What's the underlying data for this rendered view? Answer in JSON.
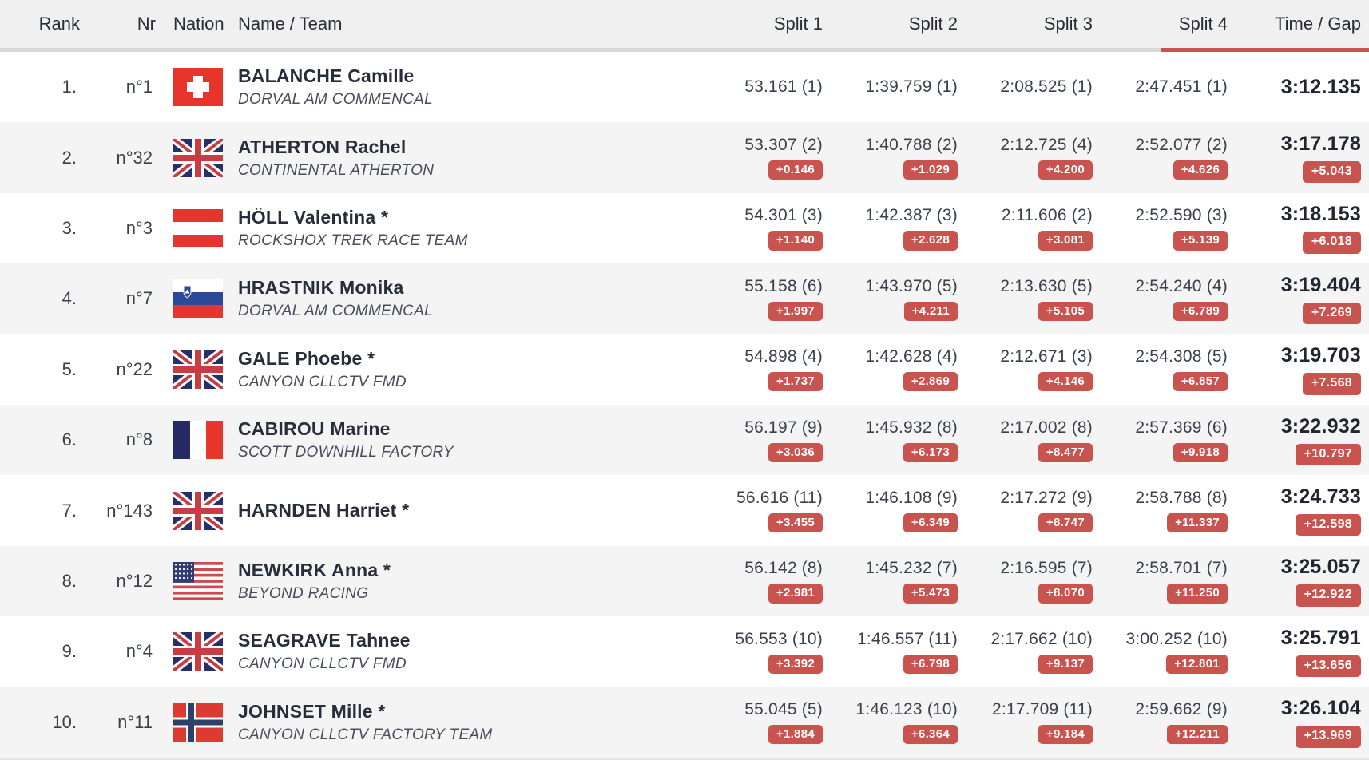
{
  "table": {
    "header": {
      "rank": "Rank",
      "nr": "Nr",
      "nation": "Nation",
      "name_team": "Name / Team",
      "split1": "Split 1",
      "split2": "Split 2",
      "split3": "Split 3",
      "split4": "Split 4",
      "time_gap": "Time / Gap"
    },
    "sorted_column": "time_gap"
  },
  "colors": {
    "accent_red": "#c9544f",
    "header_bg": "#f0f0f1",
    "alt_row_bg": "#f4f4f5",
    "separator_gray": "#d7d7d9"
  },
  "rows": [
    {
      "rank": "1.",
      "nr": "n°1",
      "nation": "SUI",
      "flag_icon": "flag-sui-icon",
      "name": "BALANCHE Camille",
      "team": "DORVAL AM COMMENCAL",
      "splits": [
        {
          "time": "53.161 (1)",
          "gap": null
        },
        {
          "time": "1:39.759 (1)",
          "gap": null
        },
        {
          "time": "2:08.525 (1)",
          "gap": null
        },
        {
          "time": "2:47.451 (1)",
          "gap": null
        }
      ],
      "total": {
        "time": "3:12.135",
        "gap": null
      }
    },
    {
      "rank": "2.",
      "nr": "n°32",
      "nation": "GBR",
      "flag_icon": "flag-gbr-icon",
      "name": "ATHERTON Rachel",
      "team": "CONTINENTAL ATHERTON",
      "splits": [
        {
          "time": "53.307 (2)",
          "gap": "+0.146"
        },
        {
          "time": "1:40.788 (2)",
          "gap": "+1.029"
        },
        {
          "time": "2:12.725 (4)",
          "gap": "+4.200"
        },
        {
          "time": "2:52.077 (2)",
          "gap": "+4.626"
        }
      ],
      "total": {
        "time": "3:17.178",
        "gap": "+5.043"
      }
    },
    {
      "rank": "3.",
      "nr": "n°3",
      "nation": "AUT",
      "flag_icon": "flag-aut-icon",
      "name": "HÖLL Valentina *",
      "team": "ROCKSHOX TREK RACE TEAM",
      "splits": [
        {
          "time": "54.301 (3)",
          "gap": "+1.140"
        },
        {
          "time": "1:42.387 (3)",
          "gap": "+2.628"
        },
        {
          "time": "2:11.606 (2)",
          "gap": "+3.081"
        },
        {
          "time": "2:52.590 (3)",
          "gap": "+5.139"
        }
      ],
      "total": {
        "time": "3:18.153",
        "gap": "+6.018"
      }
    },
    {
      "rank": "4.",
      "nr": "n°7",
      "nation": "SLO",
      "flag_icon": "flag-slo-icon",
      "name": "HRASTNIK Monika",
      "team": "DORVAL AM COMMENCAL",
      "splits": [
        {
          "time": "55.158 (6)",
          "gap": "+1.997"
        },
        {
          "time": "1:43.970 (5)",
          "gap": "+4.211"
        },
        {
          "time": "2:13.630 (5)",
          "gap": "+5.105"
        },
        {
          "time": "2:54.240 (4)",
          "gap": "+6.789"
        }
      ],
      "total": {
        "time": "3:19.404",
        "gap": "+7.269"
      }
    },
    {
      "rank": "5.",
      "nr": "n°22",
      "nation": "GBR",
      "flag_icon": "flag-gbr-icon",
      "name": "GALE Phoebe *",
      "team": "CANYON CLLCTV FMD",
      "splits": [
        {
          "time": "54.898 (4)",
          "gap": "+1.737"
        },
        {
          "time": "1:42.628 (4)",
          "gap": "+2.869"
        },
        {
          "time": "2:12.671 (3)",
          "gap": "+4.146"
        },
        {
          "time": "2:54.308 (5)",
          "gap": "+6.857"
        }
      ],
      "total": {
        "time": "3:19.703",
        "gap": "+7.568"
      }
    },
    {
      "rank": "6.",
      "nr": "n°8",
      "nation": "FRA",
      "flag_icon": "flag-fra-icon",
      "name": "CABIROU Marine",
      "team": "SCOTT DOWNHILL FACTORY",
      "splits": [
        {
          "time": "56.197 (9)",
          "gap": "+3.036"
        },
        {
          "time": "1:45.932 (8)",
          "gap": "+6.173"
        },
        {
          "time": "2:17.002 (8)",
          "gap": "+8.477"
        },
        {
          "time": "2:57.369 (6)",
          "gap": "+9.918"
        }
      ],
      "total": {
        "time": "3:22.932",
        "gap": "+10.797"
      }
    },
    {
      "rank": "7.",
      "nr": "n°143",
      "nation": "GBR",
      "flag_icon": "flag-gbr-icon",
      "name": "HARNDEN Harriet *",
      "team": null,
      "splits": [
        {
          "time": "56.616 (11)",
          "gap": "+3.455"
        },
        {
          "time": "1:46.108 (9)",
          "gap": "+6.349"
        },
        {
          "time": "2:17.272 (9)",
          "gap": "+8.747"
        },
        {
          "time": "2:58.788 (8)",
          "gap": "+11.337"
        }
      ],
      "total": {
        "time": "3:24.733",
        "gap": "+12.598"
      }
    },
    {
      "rank": "8.",
      "nr": "n°12",
      "nation": "USA",
      "flag_icon": "flag-usa-icon",
      "name": "NEWKIRK Anna *",
      "team": "BEYOND RACING",
      "splits": [
        {
          "time": "56.142 (8)",
          "gap": "+2.981"
        },
        {
          "time": "1:45.232 (7)",
          "gap": "+5.473"
        },
        {
          "time": "2:16.595 (7)",
          "gap": "+8.070"
        },
        {
          "time": "2:58.701 (7)",
          "gap": "+11.250"
        }
      ],
      "total": {
        "time": "3:25.057",
        "gap": "+12.922"
      }
    },
    {
      "rank": "9.",
      "nr": "n°4",
      "nation": "GBR",
      "flag_icon": "flag-gbr-icon",
      "name": "SEAGRAVE Tahnee",
      "team": "CANYON CLLCTV FMD",
      "splits": [
        {
          "time": "56.553 (10)",
          "gap": "+3.392"
        },
        {
          "time": "1:46.557 (11)",
          "gap": "+6.798"
        },
        {
          "time": "2:17.662 (10)",
          "gap": "+9.137"
        },
        {
          "time": "3:00.252 (10)",
          "gap": "+12.801"
        }
      ],
      "total": {
        "time": "3:25.791",
        "gap": "+13.656"
      }
    },
    {
      "rank": "10.",
      "nr": "n°11",
      "nation": "NOR",
      "flag_icon": "flag-nor-icon",
      "name": "JOHNSET Mille *",
      "team": "CANYON CLLCTV FACTORY TEAM",
      "splits": [
        {
          "time": "55.045 (5)",
          "gap": "+1.884"
        },
        {
          "time": "1:46.123 (10)",
          "gap": "+6.364"
        },
        {
          "time": "2:17.709 (11)",
          "gap": "+9.184"
        },
        {
          "time": "2:59.662 (9)",
          "gap": "+12.211"
        }
      ],
      "total": {
        "time": "3:26.104",
        "gap": "+13.969"
      }
    }
  ]
}
